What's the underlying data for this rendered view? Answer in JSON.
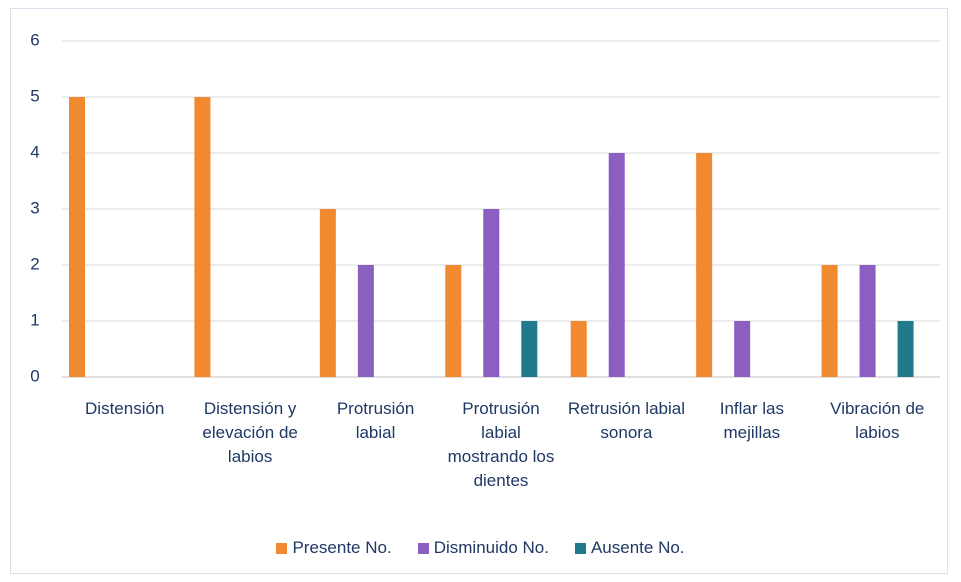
{
  "chart_data": {
    "type": "bar",
    "categories": [
      "Distensión",
      "Distensión y elevación de labios",
      "Protrusión labial",
      "Protrusión labial mostrando los dientes",
      "Retrusión labial sonora",
      "Inflar las mejillas",
      "Vibración de labios"
    ],
    "series": [
      {
        "name": "Presente No.",
        "color": "#f0892f",
        "values": [
          5,
          5,
          3,
          2,
          1,
          4,
          2
        ]
      },
      {
        "name": "Disminuido No.",
        "color": "#8a5fc0",
        "values": [
          0,
          0,
          2,
          3,
          4,
          1,
          2
        ]
      },
      {
        "name": "Ausente No.",
        "color": "#1f7a8c",
        "values": [
          0,
          0,
          0,
          1,
          0,
          0,
          1
        ]
      }
    ],
    "ylim": [
      0,
      6
    ],
    "yticks": [
      0,
      1,
      2,
      3,
      4,
      5,
      6
    ],
    "grid": true,
    "legend": "bottom"
  }
}
